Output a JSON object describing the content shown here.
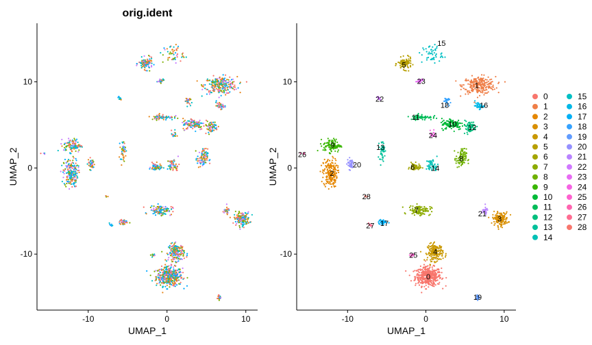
{
  "chart_data": [
    {
      "type": "scatter",
      "title": "orig.ident",
      "xlabel": "UMAP_1",
      "ylabel": "UMAP_2",
      "xlim": [
        -16.5,
        11.5
      ],
      "ylim": [
        -16.5,
        16.8
      ],
      "xticks": [
        -10,
        0,
        10
      ],
      "yticks": [
        -10,
        0,
        10
      ],
      "xtick_labels": [
        "-10",
        "0",
        "10"
      ],
      "ytick_labels": [
        "-10",
        "0",
        "10"
      ],
      "grid": false,
      "legend": "none",
      "colors": [
        "#F8766D",
        "#7CAE00",
        "#00BFC4",
        "#C77CFF",
        "#E7861B",
        "#00A9FF"
      ]
    },
    {
      "type": "scatter",
      "title": "",
      "xlabel": "UMAP_1",
      "ylabel": "UMAP_2",
      "xlim": [
        -16.5,
        11.5
      ],
      "ylim": [
        -16.5,
        16.8
      ],
      "xticks": [
        -10,
        0,
        10
      ],
      "yticks": [
        -10,
        0,
        10
      ],
      "xtick_labels": [
        "-10",
        "0",
        "10"
      ],
      "ytick_labels": [
        "-10",
        "0",
        "10"
      ],
      "grid": false,
      "legend": "right",
      "clusters": [
        {
          "name": "0",
          "color": "#F8766D",
          "x": 0.3,
          "y": -12.6,
          "sx": 1.5,
          "sy": 1.0,
          "n": 420,
          "label_x": 0.3,
          "label_y": -12.6
        },
        {
          "name": "1",
          "color": "#EF7F48",
          "x": 6.8,
          "y": 9.6,
          "sx": 1.9,
          "sy": 0.9,
          "n": 260,
          "label_x": 6.5,
          "label_y": 9.6
        },
        {
          "name": "2",
          "color": "#E58700",
          "x": -12.2,
          "y": -0.6,
          "sx": 0.8,
          "sy": 1.5,
          "n": 200,
          "label_x": -12.0,
          "label_y": -0.6
        },
        {
          "name": "3",
          "color": "#D98F00",
          "x": 9.5,
          "y": -5.9,
          "sx": 0.9,
          "sy": 0.7,
          "n": 150,
          "label_x": 9.4,
          "label_y": -5.9
        },
        {
          "name": "4",
          "color": "#C99800",
          "x": 1.2,
          "y": -9.8,
          "sx": 0.9,
          "sy": 0.9,
          "n": 180,
          "label_x": 1.2,
          "label_y": -9.7
        },
        {
          "name": "5",
          "color": "#B79F00",
          "x": -2.7,
          "y": 12.1,
          "sx": 0.8,
          "sy": 0.6,
          "n": 110,
          "label_x": -2.8,
          "label_y": 12.0
        },
        {
          "name": "6",
          "color": "#A3A500",
          "x": -1.4,
          "y": 0.1,
          "sx": 0.6,
          "sy": 0.4,
          "n": 60,
          "label_x": -1.7,
          "label_y": 0.1
        },
        {
          "name": "7",
          "color": "#8CAB00",
          "x": -0.8,
          "y": -4.9,
          "sx": 1.3,
          "sy": 0.5,
          "n": 110,
          "label_x": -1.2,
          "label_y": -4.9
        },
        {
          "name": "8",
          "color": "#6FB100",
          "x": 4.5,
          "y": 1.1,
          "sx": 0.6,
          "sy": 1.0,
          "n": 90,
          "label_x": 4.5,
          "label_y": 1.1
        },
        {
          "name": "9",
          "color": "#39B600",
          "x": -12.0,
          "y": 2.6,
          "sx": 1.0,
          "sy": 0.7,
          "n": 110,
          "label_x": -11.9,
          "label_y": 2.7
        },
        {
          "name": "10",
          "color": "#00BA38",
          "x": 3.4,
          "y": 5.1,
          "sx": 1.3,
          "sy": 0.6,
          "n": 120,
          "label_x": 3.4,
          "label_y": 5.1
        },
        {
          "name": "11",
          "color": "#00BC59",
          "x": -0.6,
          "y": 5.9,
          "sx": 1.3,
          "sy": 0.3,
          "n": 70,
          "label_x": -1.3,
          "label_y": 5.9
        },
        {
          "name": "12",
          "color": "#00BF7D",
          "x": 5.6,
          "y": 4.8,
          "sx": 0.8,
          "sy": 0.6,
          "n": 70,
          "label_x": 5.9,
          "label_y": 4.7
        },
        {
          "name": "13",
          "color": "#00C09B",
          "x": -5.6,
          "y": 2.0,
          "sx": 0.3,
          "sy": 1.0,
          "n": 40,
          "label_x": -5.8,
          "label_y": 2.4
        },
        {
          "name": "14",
          "color": "#00C1B6",
          "x": 0.8,
          "y": 0.3,
          "sx": 0.7,
          "sy": 0.7,
          "n": 50,
          "label_x": 1.2,
          "label_y": 0.0
        },
        {
          "name": "15",
          "color": "#00BFC4",
          "x": 0.8,
          "y": 13.2,
          "sx": 1.2,
          "sy": 1.0,
          "n": 50,
          "label_x": 2.0,
          "label_y": 14.5
        },
        {
          "name": "16",
          "color": "#00B8E7",
          "x": 6.8,
          "y": 7.2,
          "sx": 0.5,
          "sy": 0.3,
          "n": 40,
          "label_x": 7.4,
          "label_y": 7.3
        },
        {
          "name": "17",
          "color": "#00B0F6",
          "x": -5.5,
          "y": -6.3,
          "sx": 0.5,
          "sy": 0.3,
          "n": 40,
          "label_x": -5.3,
          "label_y": -6.4
        },
        {
          "name": "18",
          "color": "#35A2FF",
          "x": 2.6,
          "y": 7.8,
          "sx": 0.3,
          "sy": 0.4,
          "n": 30,
          "label_x": 2.4,
          "label_y": 7.3
        },
        {
          "name": "19",
          "color": "#619CFF",
          "x": 6.6,
          "y": -15.0,
          "sx": 0.2,
          "sy": 0.3,
          "n": 25,
          "label_x": 6.6,
          "label_y": -15.0
        },
        {
          "name": "20",
          "color": "#9590FF",
          "x": -9.6,
          "y": 0.5,
          "sx": 0.4,
          "sy": 0.6,
          "n": 40,
          "label_x": -8.8,
          "label_y": 0.4
        },
        {
          "name": "21",
          "color": "#B983FF",
          "x": 7.5,
          "y": -5.0,
          "sx": 0.4,
          "sy": 0.4,
          "n": 25,
          "label_x": 7.2,
          "label_y": -5.3
        },
        {
          "name": "22",
          "color": "#D078FF",
          "x": -6.0,
          "y": 8.1,
          "sx": 0.2,
          "sy": 0.2,
          "n": 12,
          "label_x": -5.9,
          "label_y": 8.0
        },
        {
          "name": "23",
          "color": "#E76BF3",
          "x": -0.8,
          "y": 10.0,
          "sx": 0.5,
          "sy": 0.3,
          "n": 20,
          "label_x": -0.6,
          "label_y": 10.1
        },
        {
          "name": "24",
          "color": "#F563E3",
          "x": 0.9,
          "y": 3.9,
          "sx": 0.3,
          "sy": 0.4,
          "n": 15,
          "label_x": 0.9,
          "label_y": 3.8
        },
        {
          "name": "25",
          "color": "#FE61CF",
          "x": -1.8,
          "y": -10.1,
          "sx": 0.3,
          "sy": 0.2,
          "n": 12,
          "label_x": -1.6,
          "label_y": -10.1
        },
        {
          "name": "26",
          "color": "#FF64B0",
          "x": -15.8,
          "y": 1.7,
          "sx": 0.2,
          "sy": 0.1,
          "n": 4,
          "label_x": -15.8,
          "label_y": 1.6
        },
        {
          "name": "27",
          "color": "#FF6C91",
          "x": -7.1,
          "y": -6.6,
          "sx": 0.2,
          "sy": 0.2,
          "n": 6,
          "label_x": -7.1,
          "label_y": -6.7
        },
        {
          "name": "28",
          "color": "#F8766D",
          "x": -7.6,
          "y": -3.3,
          "sx": 0.2,
          "sy": 0.1,
          "n": 4,
          "label_x": -7.6,
          "label_y": -3.3
        }
      ]
    }
  ]
}
